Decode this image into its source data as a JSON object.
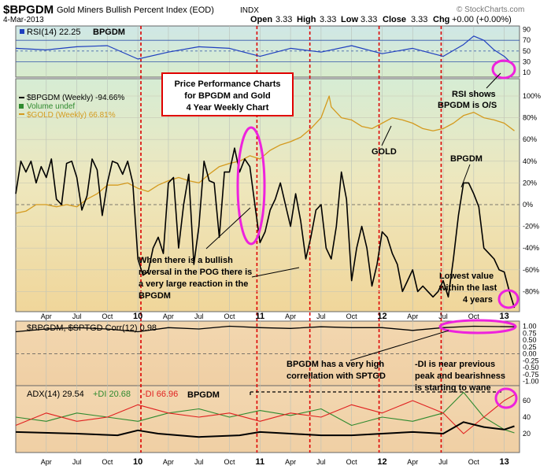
{
  "header": {
    "symbol": "$BPGDM",
    "name": "Gold Miners Bullish Percent Index (EOD)",
    "exchange": "INDX",
    "date": "4-Mar-2013",
    "open_label": "Open",
    "open": "3.33",
    "high_label": "High",
    "high": "3.33",
    "low_label": "Low",
    "low": "3.33",
    "close_label": "Close",
    "close": "3.33",
    "chg_label": "Chg",
    "chg": "+0.00 (+0.00%)",
    "watermark": "© StockCharts.com"
  },
  "x_axis": {
    "labels": [
      {
        "t": "Apr",
        "m": 3
      },
      {
        "t": "Jul",
        "m": 6
      },
      {
        "t": "Oct",
        "m": 9
      },
      {
        "t": "10",
        "m": 12,
        "major": true
      },
      {
        "t": "Apr",
        "m": 15
      },
      {
        "t": "Jul",
        "m": 18
      },
      {
        "t": "Oct",
        "m": 21
      },
      {
        "t": "11",
        "m": 24,
        "major": true
      },
      {
        "t": "Apr",
        "m": 27
      },
      {
        "t": "Jul",
        "m": 30
      },
      {
        "t": "Oct",
        "m": 33
      },
      {
        "t": "12",
        "m": 36,
        "major": true
      },
      {
        "t": "Apr",
        "m": 39
      },
      {
        "t": "Jul",
        "m": 42
      },
      {
        "t": "Oct",
        "m": 45
      },
      {
        "t": "13",
        "m": 48,
        "major": true
      }
    ],
    "red_lines_m": [
      12.3,
      23.7,
      28.9,
      35.7,
      41.8
    ]
  },
  "rsi_panel": {
    "label": "RSI(14) 22.25",
    "tag": "BPGDM",
    "yticks": [
      "90",
      "70",
      "50",
      "30",
      "10"
    ],
    "annotation": [
      "RSI shows",
      "BPGDM is O/S"
    ]
  },
  "main_panel": {
    "legend": [
      {
        "text": "$BPGDM (Weekly) -94.66%",
        "color": "#000000"
      },
      {
        "text": "Volume undef",
        "color": "#2f8a2f"
      },
      {
        "text": "$GOLD (Weekly) 66.81%",
        "color": "#d49a1e"
      }
    ],
    "yticks": [
      "100%",
      "80%",
      "60%",
      "40%",
      "20%",
      "0%",
      "-20%",
      "-40%",
      "-60%",
      "-80%"
    ],
    "title_box": [
      "Price Performance Charts",
      "for BPGDM and Gold",
      "4 Year Weekly Chart"
    ],
    "label_gold": "GOLD",
    "label_bpgdm": "BPGDM",
    "note_reversal": [
      "When there is a bullish",
      "reversal in the POG there is",
      "a very large reaction in the",
      "BPGDM"
    ],
    "note_lowest": [
      "Lowest value",
      "within the last",
      "4 years"
    ]
  },
  "corr_panel": {
    "label": "$BPGDM, $SPTGD Corr(12) 0.98",
    "yticks": [
      "1.00",
      "0.75",
      "0.50",
      "0.25",
      "0.00",
      "-0.25",
      "-0.50",
      "-0.75",
      "-1.00"
    ],
    "note_corr": [
      "BPGDM has a very high",
      "correllation with SPTGD"
    ],
    "note_di": [
      "-DI is near previous",
      "peak and bearishness",
      "is starting to wane"
    ]
  },
  "adx_panel": {
    "label_adx": "ADX(14) 29.54",
    "label_pdi": "+DI 20.68",
    "label_mdi": "-DI 66.96",
    "tag": "BPGDM",
    "yticks": [
      "60",
      "40",
      "20"
    ]
  },
  "chart_data": {
    "type": "line",
    "x_unit": "months since Jan 2009",
    "bpgdm_pct": [
      [
        0,
        10
      ],
      [
        0.5,
        40
      ],
      [
        1,
        30
      ],
      [
        1.5,
        40
      ],
      [
        2,
        20
      ],
      [
        2.5,
        35
      ],
      [
        3,
        25
      ],
      [
        3.5,
        42
      ],
      [
        4,
        5
      ],
      [
        4.5,
        0
      ],
      [
        5,
        38
      ],
      [
        5.5,
        40
      ],
      [
        6,
        25
      ],
      [
        6.5,
        -5
      ],
      [
        7,
        8
      ],
      [
        7.5,
        42
      ],
      [
        8,
        32
      ],
      [
        8.5,
        -10
      ],
      [
        9,
        20
      ],
      [
        9.5,
        40
      ],
      [
        10,
        38
      ],
      [
        10.5,
        28
      ],
      [
        11,
        40
      ],
      [
        11.5,
        20
      ],
      [
        12,
        -50
      ],
      [
        12.5,
        -65
      ],
      [
        13,
        -62
      ],
      [
        13.5,
        -40
      ],
      [
        14,
        -30
      ],
      [
        14.5,
        -45
      ],
      [
        15,
        20
      ],
      [
        15.5,
        25
      ],
      [
        16,
        -40
      ],
      [
        16.5,
        0
      ],
      [
        17,
        28
      ],
      [
        17.5,
        -55
      ],
      [
        18,
        -20
      ],
      [
        18.5,
        40
      ],
      [
        19,
        22
      ],
      [
        19.5,
        20
      ],
      [
        20,
        -30
      ],
      [
        20.5,
        30
      ],
      [
        21,
        30
      ],
      [
        21.5,
        52
      ],
      [
        22,
        30
      ],
      [
        22.5,
        42
      ],
      [
        23,
        35
      ],
      [
        23.5,
        0
      ],
      [
        24,
        -35
      ],
      [
        24.5,
        -25
      ],
      [
        25,
        -5
      ],
      [
        25.5,
        5
      ],
      [
        26,
        20
      ],
      [
        26.5,
        0
      ],
      [
        27,
        -20
      ],
      [
        27.5,
        10
      ],
      [
        28,
        -15
      ],
      [
        28.5,
        -50
      ],
      [
        29,
        -30
      ],
      [
        29.5,
        -5
      ],
      [
        30,
        0
      ],
      [
        30.5,
        -40
      ],
      [
        31,
        -50
      ],
      [
        31.5,
        -20
      ],
      [
        32,
        30
      ],
      [
        32.5,
        5
      ],
      [
        33,
        -70
      ],
      [
        33.5,
        -40
      ],
      [
        34,
        -20
      ],
      [
        34.5,
        -40
      ],
      [
        35,
        -75
      ],
      [
        35.5,
        -55
      ],
      [
        36,
        -25
      ],
      [
        36.5,
        -30
      ],
      [
        37,
        -45
      ],
      [
        37.5,
        -55
      ],
      [
        38,
        -80
      ],
      [
        38.5,
        -70
      ],
      [
        39,
        -60
      ],
      [
        39.5,
        -80
      ],
      [
        40,
        -75
      ],
      [
        40.5,
        -80
      ],
      [
        41,
        -85
      ],
      [
        41.5,
        -80
      ],
      [
        42,
        -70
      ],
      [
        42.5,
        -85
      ],
      [
        43,
        -50
      ],
      [
        43.5,
        -10
      ],
      [
        44,
        20
      ],
      [
        44.5,
        20
      ],
      [
        45,
        10
      ],
      [
        45.5,
        -2
      ],
      [
        46,
        -40
      ],
      [
        46.5,
        -45
      ],
      [
        47,
        -50
      ],
      [
        47.5,
        -60
      ],
      [
        48,
        -62
      ],
      [
        48.5,
        -80
      ],
      [
        49,
        -95
      ]
    ],
    "gold_pct": [
      [
        0,
        -8
      ],
      [
        1,
        -6
      ],
      [
        2,
        0
      ],
      [
        3,
        0
      ],
      [
        4,
        -2
      ],
      [
        5,
        0
      ],
      [
        6,
        -2
      ],
      [
        7,
        5
      ],
      [
        8,
        10
      ],
      [
        9,
        18
      ],
      [
        10,
        18
      ],
      [
        11,
        20
      ],
      [
        12,
        15
      ],
      [
        13,
        12
      ],
      [
        14,
        18
      ],
      [
        15,
        22
      ],
      [
        16,
        25
      ],
      [
        17,
        22
      ],
      [
        18,
        20
      ],
      [
        19,
        28
      ],
      [
        20,
        35
      ],
      [
        21,
        38
      ],
      [
        22,
        40
      ],
      [
        23,
        45
      ],
      [
        24,
        42
      ],
      [
        25,
        50
      ],
      [
        26,
        55
      ],
      [
        27,
        58
      ],
      [
        28,
        62
      ],
      [
        29,
        70
      ],
      [
        30,
        80
      ],
      [
        30.8,
        100
      ],
      [
        31,
        90
      ],
      [
        32,
        80
      ],
      [
        33,
        78
      ],
      [
        34,
        72
      ],
      [
        35,
        70
      ],
      [
        36,
        75
      ],
      [
        37,
        80
      ],
      [
        38,
        78
      ],
      [
        39,
        75
      ],
      [
        40,
        70
      ],
      [
        41,
        68
      ],
      [
        42,
        70
      ],
      [
        43,
        75
      ],
      [
        44,
        82
      ],
      [
        45,
        85
      ],
      [
        46,
        80
      ],
      [
        47,
        78
      ],
      [
        48,
        75
      ],
      [
        49,
        68
      ]
    ],
    "rsi": [
      [
        0,
        55
      ],
      [
        3,
        52
      ],
      [
        6,
        58
      ],
      [
        9,
        60
      ],
      [
        12,
        35
      ],
      [
        15,
        48
      ],
      [
        18,
        58
      ],
      [
        21,
        55
      ],
      [
        24,
        40
      ],
      [
        27,
        55
      ],
      [
        30,
        48
      ],
      [
        33,
        60
      ],
      [
        36,
        45
      ],
      [
        39,
        55
      ],
      [
        42,
        40
      ],
      [
        44,
        62
      ],
      [
        45,
        78
      ],
      [
        46,
        70
      ],
      [
        47,
        52
      ],
      [
        48,
        40
      ],
      [
        49,
        22
      ]
    ],
    "corr": [
      [
        0,
        0.8
      ],
      [
        3,
        0.9
      ],
      [
        6,
        0.95
      ],
      [
        9,
        0.9
      ],
      [
        12,
        0.8
      ],
      [
        15,
        0.95
      ],
      [
        18,
        0.9
      ],
      [
        21,
        1.0
      ],
      [
        24,
        0.95
      ],
      [
        27,
        0.92
      ],
      [
        30,
        0.98
      ],
      [
        33,
        0.95
      ],
      [
        36,
        0.95
      ],
      [
        39,
        0.85
      ],
      [
        42,
        0.95
      ],
      [
        45,
        1.0
      ],
      [
        49,
        0.98
      ]
    ],
    "adx": [
      [
        0,
        22
      ],
      [
        6,
        20
      ],
      [
        10,
        18
      ],
      [
        12,
        24
      ],
      [
        14,
        20
      ],
      [
        18,
        16
      ],
      [
        22,
        18
      ],
      [
        24,
        22
      ],
      [
        27,
        20
      ],
      [
        30,
        18
      ],
      [
        33,
        18
      ],
      [
        36,
        20
      ],
      [
        39,
        22
      ],
      [
        42,
        20
      ],
      [
        44,
        34
      ],
      [
        46,
        28
      ],
      [
        48,
        25
      ],
      [
        49,
        29
      ]
    ],
    "plus_di": [
      [
        0,
        40
      ],
      [
        3,
        35
      ],
      [
        6,
        45
      ],
      [
        9,
        40
      ],
      [
        12,
        35
      ],
      [
        15,
        45
      ],
      [
        18,
        50
      ],
      [
        21,
        40
      ],
      [
        24,
        48
      ],
      [
        27,
        42
      ],
      [
        30,
        50
      ],
      [
        33,
        30
      ],
      [
        36,
        40
      ],
      [
        39,
        35
      ],
      [
        42,
        45
      ],
      [
        44,
        70
      ],
      [
        46,
        40
      ],
      [
        48,
        25
      ],
      [
        49,
        21
      ]
    ],
    "minus_di": [
      [
        0,
        30
      ],
      [
        3,
        45
      ],
      [
        6,
        35
      ],
      [
        9,
        40
      ],
      [
        12,
        55
      ],
      [
        15,
        45
      ],
      [
        18,
        40
      ],
      [
        21,
        45
      ],
      [
        24,
        35
      ],
      [
        27,
        45
      ],
      [
        30,
        40
      ],
      [
        33,
        55
      ],
      [
        36,
        45
      ],
      [
        39,
        60
      ],
      [
        42,
        45
      ],
      [
        44,
        20
      ],
      [
        46,
        40
      ],
      [
        48,
        60
      ],
      [
        49,
        67
      ]
    ],
    "colors": {
      "bpgdm": "#000000",
      "gold": "#d49a1e",
      "rsi": "#1f3fbf",
      "plus_di": "#2f8a2f",
      "minus_di": "#e02020",
      "annotation_box": "#e00000",
      "highlight": "#ee22dd",
      "event_line": "#dd0000"
    }
  }
}
